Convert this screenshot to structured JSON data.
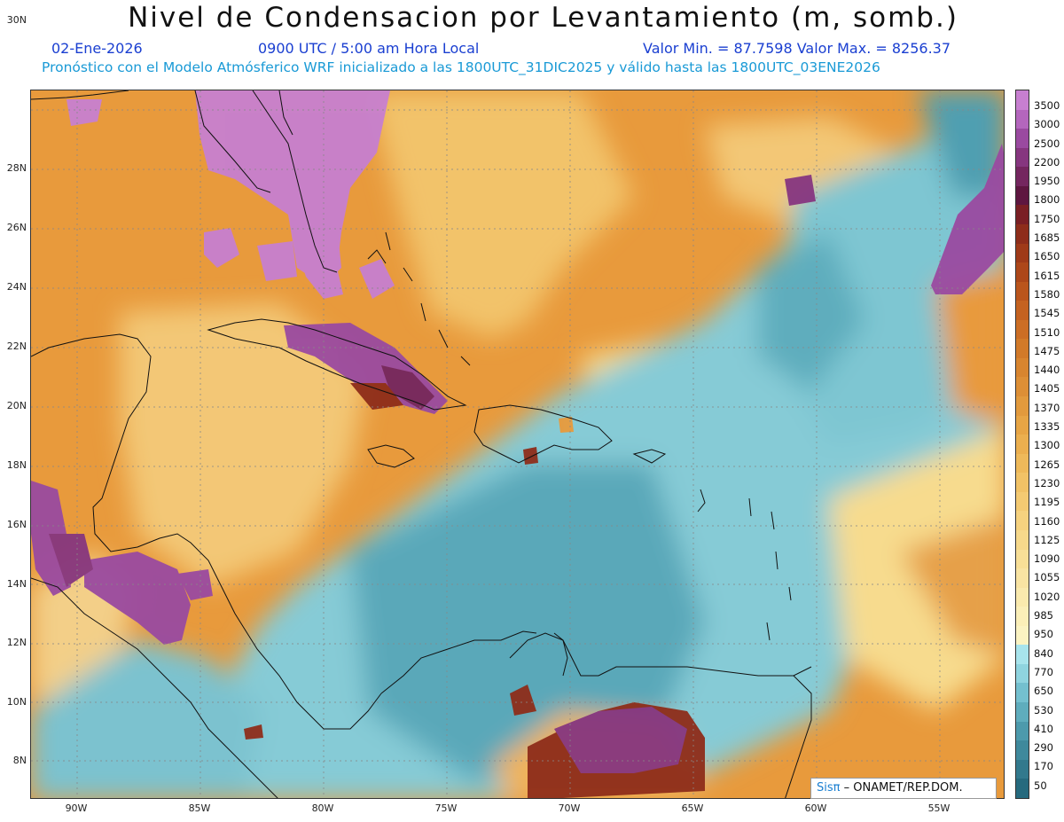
{
  "title": "Nivel de Condensacion por Levantamiento (m, somb.)",
  "info": {
    "date": "02-Ene-2026",
    "time": "0900 UTC / 5:00 am Hora Local",
    "minmax": "Valor Min. = 87.7598  Valor Max. = 8256.37",
    "forecast": "Pronóstico con el Modelo Atmósferico WRF inicializado a las 1800UTC_31DIC2025 y válido hasta las  1800UTC_03ENE2026"
  },
  "lat_labels": [
    "30N",
    "28N",
    "26N",
    "24N",
    "22N",
    "20N",
    "18N",
    "16N",
    "14N",
    "12N",
    "10N",
    "8N"
  ],
  "lon_labels": [
    "90W",
    "85W",
    "80W",
    "75W",
    "70W",
    "65W",
    "60W",
    "55W"
  ],
  "colorbar": {
    "labels": [
      "3500",
      "3000",
      "2500",
      "2200",
      "1950",
      "1800",
      "1750",
      "1685",
      "1650",
      "1615",
      "1580",
      "1545",
      "1510",
      "1475",
      "1440",
      "1405",
      "1370",
      "1335",
      "1300",
      "1265",
      "1230",
      "1195",
      "1160",
      "1125",
      "1090",
      "1055",
      "1020",
      "985",
      "950",
      "840",
      "770",
      "650",
      "530",
      "410",
      "290",
      "170",
      "50"
    ],
    "colors": [
      "#c77fd0",
      "#b466bd",
      "#9a4aa0",
      "#86367f",
      "#74265f",
      "#5e1640",
      "#7a1f24",
      "#8e2d1a",
      "#9f3a18",
      "#ad4719",
      "#ba551c",
      "#c46220",
      "#cc6e25",
      "#d27a29",
      "#d8852f",
      "#dd8f36",
      "#e29a3d",
      "#e7a545",
      "#ebaf4f",
      "#eeb95a",
      "#f1c266",
      "#f4ca72",
      "#f6d27f",
      "#f7d98b",
      "#f8df97",
      "#f9e4a3",
      "#faeaae",
      "#fbefb8",
      "#fbf3c2",
      "#a8e4ec",
      "#8fd4df",
      "#74c0cf",
      "#5fadbd",
      "#4d9aac",
      "#3f899c",
      "#32798d",
      "#266a7e"
    ]
  },
  "credit": {
    "prefix": "Sis",
    "pi": "π",
    "text": " – ONAMET/REP.DOM."
  }
}
